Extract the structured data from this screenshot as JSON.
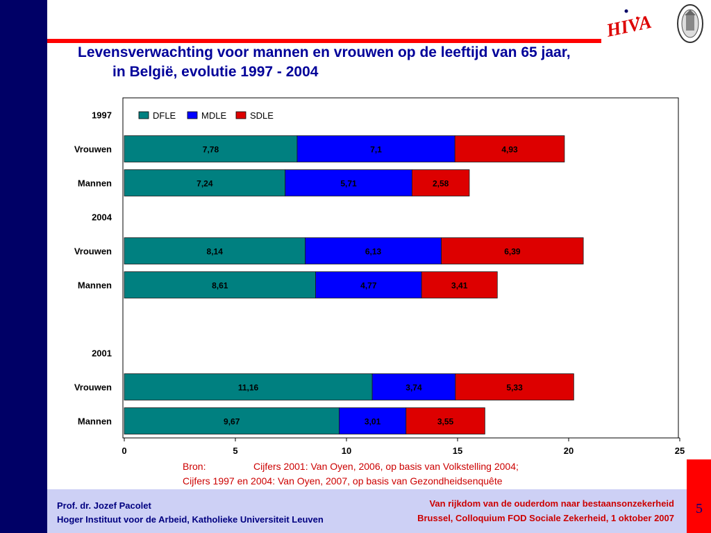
{
  "title": {
    "line1": "Levensverwachting voor mannen en vrouwen op de leeftijd van 65 jaar,",
    "line2": "in België, evolutie 1997 - 2004"
  },
  "logo": {
    "text": "HIVA"
  },
  "chart_data": {
    "type": "bar",
    "orientation": "horizontal",
    "stacked": true,
    "categories": [
      "1997",
      "Vrouwen",
      "Mannen",
      "2004",
      "Vrouwen",
      "Mannen",
      "",
      "2001",
      "Vrouwen",
      "Mannen"
    ],
    "series": [
      {
        "name": "DFLE",
        "color": "#008080",
        "values": [
          null,
          7.78,
          7.24,
          null,
          8.14,
          8.61,
          null,
          null,
          11.16,
          9.67
        ],
        "labels": [
          "",
          "7,78",
          "7,24",
          "",
          "8,14",
          "8,61",
          "",
          "",
          "11,16",
          "9,67"
        ]
      },
      {
        "name": "MDLE",
        "color": "#0000ff",
        "values": [
          null,
          7.1,
          5.71,
          null,
          6.13,
          4.77,
          null,
          null,
          3.74,
          3.01
        ],
        "labels": [
          "",
          "7,1",
          "5,71",
          "",
          "6,13",
          "4,77",
          "",
          "",
          "3,74",
          "3,01"
        ]
      },
      {
        "name": "SDLE",
        "color": "#dd0000",
        "values": [
          null,
          4.93,
          2.58,
          null,
          6.39,
          3.41,
          null,
          null,
          5.33,
          3.55
        ],
        "labels": [
          "",
          "4,93",
          "2,58",
          "",
          "6,39",
          "3,41",
          "",
          "",
          "5,33",
          "3,55"
        ]
      }
    ],
    "xlim": [
      0,
      25
    ],
    "xticks": [
      "0",
      "5",
      "10",
      "15",
      "20",
      "25"
    ],
    "grid": false,
    "legend": "top-left"
  },
  "source": {
    "label": "Bron:",
    "line1": "Cijfers 2001: Van Oyen, 2006, op basis van Volkstelling 2004;",
    "line2": "Cijfers 1997 en 2004: Van Oyen, 2007, op basis van Gezondheidsenquête"
  },
  "footer": {
    "author": "Prof. dr. Jozef Pacolet",
    "institute": "Hoger Instituut voor de Arbeid, Katholieke Universiteit Leuven",
    "event_title": "Van rijkdom van de ouderdom naar bestaansonzekerheid",
    "event_details": "Brussel, Colloquium FOD Sociale Zekerheid, 1 oktober 2007"
  },
  "page_number": "5"
}
